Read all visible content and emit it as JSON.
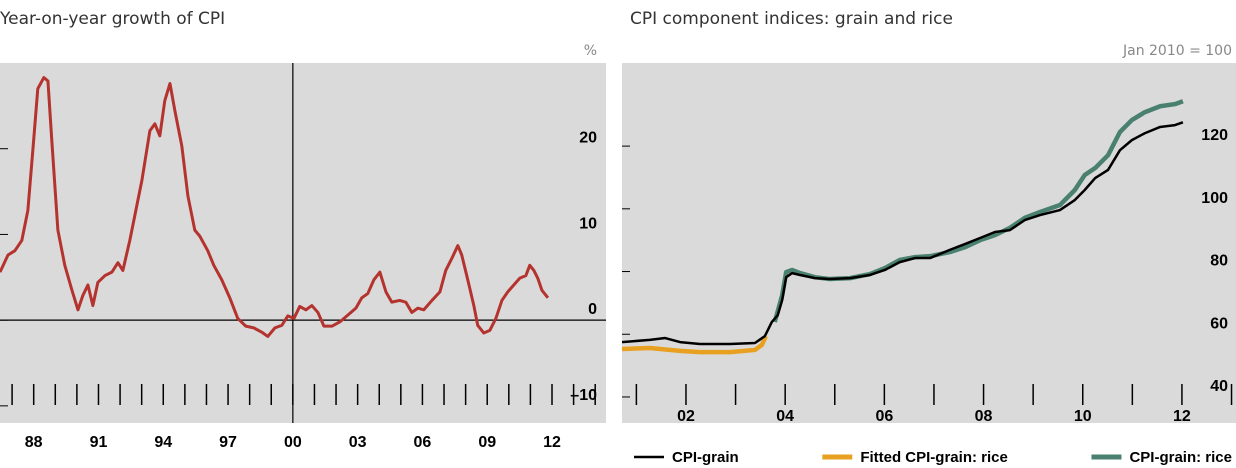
{
  "chart_data": [
    {
      "type": "line",
      "title": "Year-on-year growth of CPI",
      "y_unit": "%",
      "xlim": [
        1986.44,
        2014.5
      ],
      "ylim": [
        -12,
        30
      ],
      "xticks": [
        {
          "value": 1988,
          "label": "88"
        },
        {
          "value": 1991,
          "label": "91"
        },
        {
          "value": 1994,
          "label": "94"
        },
        {
          "value": 1997,
          "label": "97"
        },
        {
          "value": 2000,
          "label": "00"
        },
        {
          "value": 2003,
          "label": "03"
        },
        {
          "value": 2006,
          "label": "06"
        },
        {
          "value": 2009,
          "label": "09"
        },
        {
          "value": 2012,
          "label": "12"
        }
      ],
      "yticks": [
        {
          "value": -10,
          "label": "–10"
        },
        0,
        10,
        20
      ],
      "vline": 2000,
      "series": [
        {
          "color": "#b5332e",
          "x": [
            1986.44,
            1986.81,
            1987.13,
            1987.45,
            1987.73,
            1987.96,
            1988.19,
            1988.47,
            1988.66,
            1988.84,
            1989.12,
            1989.44,
            1989.77,
            1990.05,
            1990.28,
            1990.51,
            1990.74,
            1990.97,
            1991.3,
            1991.62,
            1991.9,
            1992.13,
            1992.45,
            1992.73,
            1993.01,
            1993.38,
            1993.61,
            1993.84,
            1994.07,
            1994.31,
            1994.54,
            1994.86,
            1995.14,
            1995.46,
            1995.69,
            1996.06,
            1996.34,
            1996.71,
            1997.08,
            1997.45,
            1997.82,
            1998.19,
            1998.56,
            1998.84,
            1999.17,
            1999.49,
            1999.77,
            2000.05,
            2000.32,
            2000.6,
            2000.88,
            2001.16,
            2001.44,
            2001.81,
            2002.18,
            2002.55,
            2002.92,
            2003.19,
            2003.47,
            2003.75,
            2004.03,
            2004.31,
            2004.58,
            2004.95,
            2005.23,
            2005.51,
            2005.79,
            2006.06,
            2006.44,
            2006.81,
            2007.08,
            2007.36,
            2007.64,
            2007.82,
            2008.1,
            2008.38,
            2008.56,
            2008.84,
            2009.12,
            2009.4,
            2009.68,
            2009.95,
            2010.23,
            2010.51,
            2010.79,
            2010.97,
            2011.16,
            2011.34,
            2011.53,
            2011.81
          ],
          "values": [
            5.6,
            7.6,
            8.1,
            9.3,
            12.8,
            19.8,
            27.0,
            28.3,
            27.9,
            20.9,
            10.5,
            6.4,
            3.5,
            1.2,
            2.9,
            4.1,
            1.7,
            4.4,
            5.2,
            5.6,
            6.7,
            5.8,
            9.3,
            12.8,
            16.3,
            22.1,
            22.9,
            21.5,
            25.6,
            27.6,
            24.4,
            20.3,
            14.5,
            10.5,
            9.8,
            8.1,
            6.4,
            4.7,
            2.6,
            0.2,
            -0.7,
            -0.9,
            -1.4,
            -1.9,
            -0.9,
            -0.6,
            0.5,
            0.2,
            1.6,
            1.2,
            1.7,
            0.9,
            -0.7,
            -0.7,
            -0.2,
            0.6,
            1.4,
            2.6,
            3.1,
            4.7,
            5.6,
            3.3,
            2.1,
            2.3,
            2.1,
            0.9,
            1.4,
            1.2,
            2.3,
            3.3,
            5.8,
            7.2,
            8.7,
            7.6,
            4.7,
            1.7,
            -0.6,
            -1.5,
            -1.2,
            0.2,
            2.3,
            3.3,
            4.1,
            4.9,
            5.2,
            6.4,
            5.8,
            4.9,
            3.5,
            2.6
          ]
        }
      ]
    },
    {
      "type": "line",
      "title": "CPI component indices: grain and rice",
      "y_unit": "Jan 2010 = 100",
      "xlim": [
        2000.71,
        2013.09
      ],
      "ylim": [
        31.7,
        146.5
      ],
      "xticks": [
        {
          "value": 2002,
          "label": "02"
        },
        {
          "value": 2004,
          "label": "04"
        },
        {
          "value": 2006,
          "label": "06"
        },
        {
          "value": 2008,
          "label": "08"
        },
        {
          "value": 2010,
          "label": "10"
        },
        {
          "value": 2012,
          "label": "12"
        }
      ],
      "yticks": [
        40,
        60,
        80,
        100,
        120
      ],
      "legend": "bottom",
      "series": [
        {
          "name": "CPI-grain",
          "color": "#000000",
          "x": [
            2000.71,
            2001.27,
            2001.58,
            2001.88,
            2002.28,
            2002.89,
            2003.39,
            2003.59,
            2003.73,
            2003.85,
            2003.94,
            2004.02,
            2004.14,
            2004.3,
            2004.6,
            2004.9,
            2005.31,
            2005.71,
            2006.01,
            2006.31,
            2006.62,
            2006.92,
            2007.32,
            2007.63,
            2007.93,
            2008.23,
            2008.53,
            2008.83,
            2009.14,
            2009.54,
            2009.84,
            2010.04,
            2010.25,
            2010.51,
            2010.75,
            2010.99,
            2011.25,
            2011.56,
            2011.86,
            2012.02
          ],
          "values": [
            57.5,
            58.2,
            58.8,
            57.5,
            56.9,
            56.9,
            57.2,
            59.4,
            63.9,
            66.1,
            70.9,
            78.2,
            79.5,
            78.9,
            77.9,
            77.6,
            77.9,
            78.9,
            80.5,
            83.0,
            84.3,
            84.3,
            86.9,
            88.8,
            90.7,
            92.6,
            93.2,
            96.4,
            98.0,
            99.6,
            102.8,
            106.0,
            109.8,
            112.4,
            118.7,
            121.9,
            124.1,
            126.1,
            126.7,
            127.6
          ]
        },
        {
          "name": "Fitted CPI-grain: rice",
          "color": "#e8a020",
          "x": [
            2000.71,
            2001.27,
            2001.88,
            2002.28,
            2002.89,
            2003.39,
            2003.53,
            2003.61
          ],
          "values": [
            55.3,
            55.6,
            54.7,
            54.3,
            54.3,
            55.0,
            56.6,
            59.4
          ]
        },
        {
          "name": "CPI-grain: rice",
          "color": "#4a8070",
          "x": [
            2003.79,
            2003.94,
            2004.02,
            2004.14,
            2004.3,
            2004.6,
            2004.9,
            2005.31,
            2005.71,
            2006.01,
            2006.31,
            2006.62,
            2006.92,
            2007.32,
            2007.63,
            2007.93,
            2008.23,
            2008.53,
            2008.83,
            2009.14,
            2009.54,
            2009.84,
            2010.04,
            2010.25,
            2010.51,
            2010.75,
            2010.99,
            2011.25,
            2011.56,
            2011.86,
            2012.02
          ],
          "values": [
            63.9,
            72.5,
            79.8,
            80.5,
            79.5,
            78.2,
            77.6,
            77.9,
            79.2,
            81.1,
            83.7,
            84.6,
            84.9,
            86.2,
            87.8,
            90.0,
            91.6,
            93.9,
            97.1,
            99.0,
            101.2,
            106.0,
            110.8,
            113.0,
            117.1,
            124.5,
            128.3,
            130.8,
            132.7,
            133.4,
            134.3
          ]
        }
      ]
    }
  ]
}
